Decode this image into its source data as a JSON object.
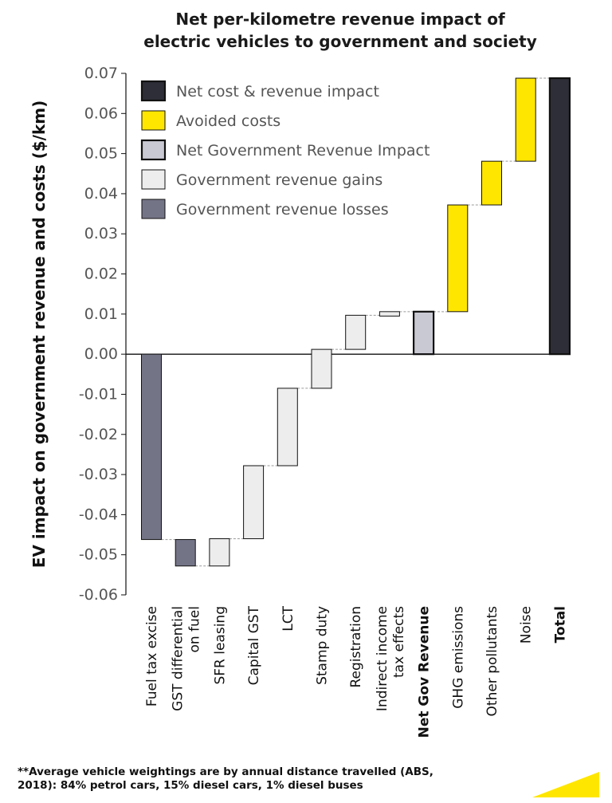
{
  "chart_data": {
    "type": "waterfall",
    "title": [
      "Net per-kilometre revenue impact of",
      "electric vehicles to government and society"
    ],
    "ylabel": "EV impact on government revenue and costs ($/km)",
    "ylim": [
      -0.06,
      0.07
    ],
    "yticks": [
      0.07,
      0.06,
      0.05,
      0.04,
      0.03,
      0.02,
      0.01,
      0.0,
      -0.01,
      -0.02,
      -0.03,
      -0.04,
      -0.05,
      -0.06
    ],
    "ytick_labels": [
      "0.07",
      "0.06",
      "0.05",
      "0.04",
      "0.03",
      "0.02",
      "0.01",
      "0.00",
      "-0.01",
      "-0.02",
      "-0.03",
      "-0.04",
      "-0.05",
      "-0.06"
    ],
    "bars": [
      {
        "label": [
          "Fuel tax excise"
        ],
        "start": 0.0,
        "end": -0.0462,
        "kind": "loss",
        "bold": false,
        "muted": false
      },
      {
        "label": [
          "GST differential",
          "on fuel"
        ],
        "start": -0.0462,
        "end": -0.0528,
        "kind": "loss",
        "bold": false,
        "muted": false
      },
      {
        "label": [
          "SFR leasing"
        ],
        "start": -0.0528,
        "end": -0.046,
        "kind": "gain",
        "bold": false,
        "muted": false
      },
      {
        "label": [
          "Capital GST"
        ],
        "start": -0.046,
        "end": -0.0278,
        "kind": "gain",
        "bold": false,
        "muted": false
      },
      {
        "label": [
          "LCT"
        ],
        "start": -0.0278,
        "end": -0.0085,
        "kind": "gain",
        "bold": false,
        "muted": true
      },
      {
        "label": [
          "Stamp duty"
        ],
        "start": -0.0085,
        "end": 0.0012,
        "kind": "gain",
        "bold": false,
        "muted": false
      },
      {
        "label": [
          "Registration"
        ],
        "start": 0.0012,
        "end": 0.0097,
        "kind": "gain",
        "bold": false,
        "muted": false
      },
      {
        "label": [
          "Indirect income",
          "tax effects"
        ],
        "start": 0.0095,
        "end": 0.0106,
        "kind": "gain",
        "bold": false,
        "muted": false
      },
      {
        "label": [
          "Net Gov Revenue"
        ],
        "start": 0.0,
        "end": 0.0106,
        "kind": "netgov",
        "bold": true,
        "muted": false
      },
      {
        "label": [
          "GHG emissions"
        ],
        "start": 0.0106,
        "end": 0.0372,
        "kind": "avoided",
        "bold": false,
        "muted": false
      },
      {
        "label": [
          "Other pollutants"
        ],
        "start": 0.0372,
        "end": 0.0481,
        "kind": "avoided",
        "bold": false,
        "muted": false
      },
      {
        "label": [
          "Noise"
        ],
        "start": 0.0481,
        "end": 0.0688,
        "kind": "avoided",
        "bold": false,
        "muted": false
      },
      {
        "label": [
          "Total"
        ],
        "start": 0.0,
        "end": 0.0688,
        "kind": "net",
        "bold": true,
        "muted": false
      }
    ],
    "legend": [
      {
        "label": "Net cost & revenue impact",
        "kind": "net"
      },
      {
        "label": "Avoided costs",
        "kind": "avoided"
      },
      {
        "label": "Net Government Revenue Impact",
        "kind": "netgov"
      },
      {
        "label": "Government revenue gains",
        "kind": "gain"
      },
      {
        "label": "Government revenue losses",
        "kind": "loss"
      }
    ],
    "colors": {
      "net": "#2e2e38",
      "avoided": "#ffe600",
      "netgov": "#c9c9d3",
      "gain": "#ededed",
      "loss": "#747487",
      "muted_label": "#8a8a8a"
    }
  },
  "footnote": [
    "**Average vehicle weightings are by annual distance travelled (ABS,",
    "2018): 84% petrol cars, 15% diesel cars, 1% diesel buses"
  ]
}
